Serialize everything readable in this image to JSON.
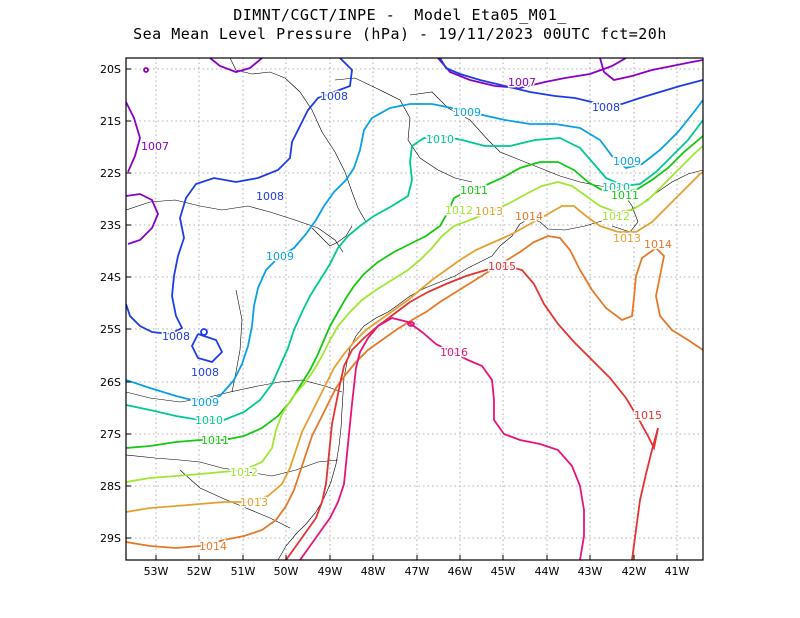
{
  "header": {
    "line1": "DIMNT/CGCT/INPE -  Model Eta05_M01_",
    "line2": "Sea Mean Level Pressure (hPa) - 19/11/2023 00UTC fct=20h"
  },
  "axes": {
    "x_ticks": [
      "53W",
      "52W",
      "51W",
      "50W",
      "49W",
      "48W",
      "47W",
      "46W",
      "45W",
      "44W",
      "43W",
      "42W",
      "41W"
    ],
    "y_ticks": [
      "20S",
      "21S",
      "22S",
      "23S",
      "24S",
      "25S",
      "26S",
      "27S",
      "28S",
      "29S"
    ]
  },
  "colors": {
    "1007": "#8b00c8",
    "1008": "#1e3ce6",
    "1009": "#0aa0e6",
    "1010": "#00c896",
    "1011": "#14c814",
    "1012": "#a0e632",
    "1013": "#e6a032",
    "1014": "#e67828",
    "1015": "#e63232",
    "1016": "#e6147a"
  },
  "contour_labels": [
    {
      "text": "1007",
      "level": "1007"
    },
    {
      "text": "1007",
      "level": "1007"
    },
    {
      "text": "1008",
      "level": "1008"
    },
    {
      "text": "1008",
      "level": "1008"
    },
    {
      "text": "1008",
      "level": "1008"
    },
    {
      "text": "1008",
      "level": "1008"
    },
    {
      "text": "1008",
      "level": "1008"
    },
    {
      "text": "1009",
      "level": "1009"
    },
    {
      "text": "1009",
      "level": "1009"
    },
    {
      "text": "1009",
      "level": "1009"
    },
    {
      "text": "1009",
      "level": "1009"
    },
    {
      "text": "1010",
      "level": "1010"
    },
    {
      "text": "1010",
      "level": "1010"
    },
    {
      "text": "1010",
      "level": "1010"
    },
    {
      "text": "1011",
      "level": "1011"
    },
    {
      "text": "1011",
      "level": "1011"
    },
    {
      "text": "1011",
      "level": "1011"
    },
    {
      "text": "1012",
      "level": "1012"
    },
    {
      "text": "1012",
      "level": "1012"
    },
    {
      "text": "1012",
      "level": "1012"
    },
    {
      "text": "1013",
      "level": "1013"
    },
    {
      "text": "1013",
      "level": "1013"
    },
    {
      "text": "1013",
      "level": "1013"
    },
    {
      "text": "1014",
      "level": "1014"
    },
    {
      "text": "1014",
      "level": "1014"
    },
    {
      "text": "1014",
      "level": "1014"
    },
    {
      "text": "1015",
      "level": "1015"
    },
    {
      "text": "1015",
      "level": "1015"
    },
    {
      "text": "1016",
      "level": "1016"
    }
  ]
}
